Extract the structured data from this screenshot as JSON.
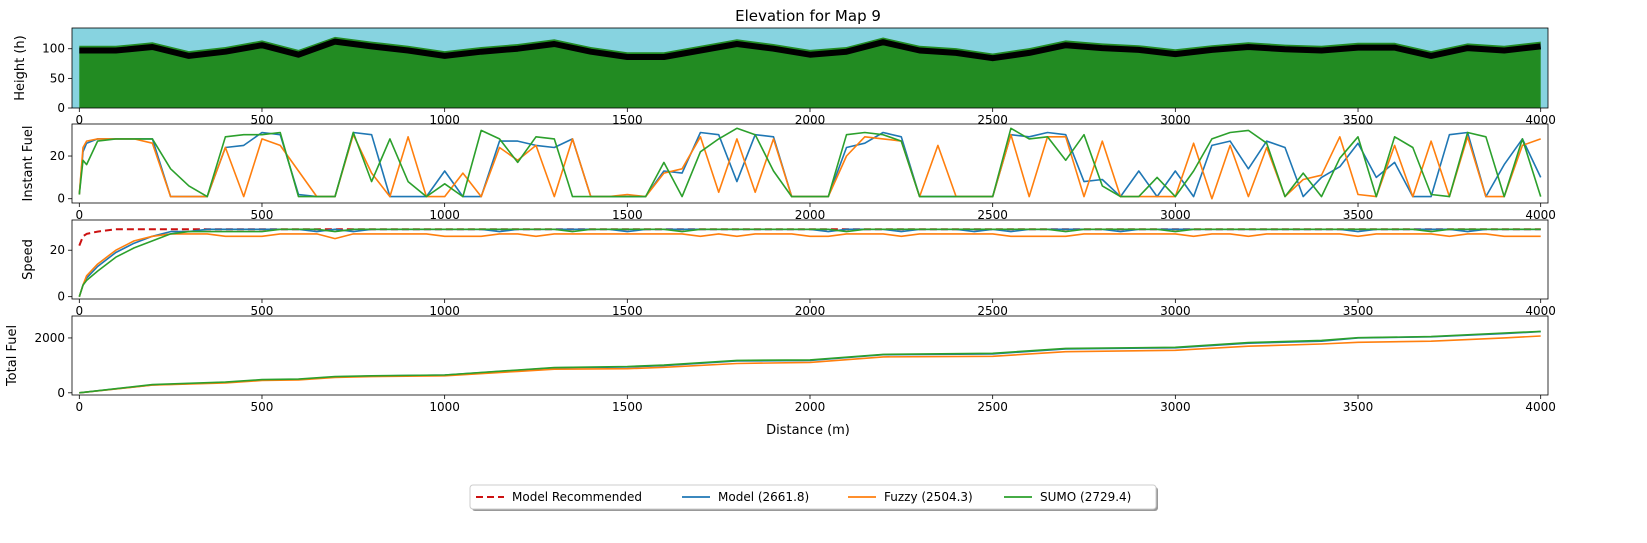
{
  "figure": {
    "title": "Elevation for Map 9",
    "xlabel": "Distance (m)",
    "x_ticks": [
      0,
      500,
      1000,
      1500,
      2000,
      2500,
      3000,
      3500,
      4000
    ]
  },
  "colors": {
    "sky": "#87d3e0",
    "ground": "#228b22",
    "road": "#000000",
    "model_recommended": "#cc1111",
    "model": "#1f77b4",
    "fuzzy": "#ff7f0e",
    "sumo": "#2ca02c"
  },
  "legend": {
    "placement": "bottom-center",
    "entries": [
      {
        "key": "model_recommended",
        "label": "Model Recommended",
        "style": "dashed"
      },
      {
        "key": "model",
        "label": "Model (2661.8)",
        "style": "solid"
      },
      {
        "key": "fuzzy",
        "label": "Fuzzy (2504.3)",
        "style": "solid"
      },
      {
        "key": "sumo",
        "label": "SUMO (2729.4)",
        "style": "solid"
      }
    ]
  },
  "chart_data": [
    {
      "type": "area",
      "ylabel": "Height (h)",
      "xlim": [
        -20,
        4020
      ],
      "ylim": [
        0,
        135
      ],
      "y_ticks": [
        0,
        50,
        100
      ],
      "series": [
        {
          "key": "elevation",
          "x": [
            0,
            100,
            200,
            300,
            400,
            500,
            600,
            700,
            800,
            900,
            1000,
            1100,
            1200,
            1300,
            1400,
            1500,
            1600,
            1700,
            1800,
            1900,
            2000,
            2100,
            2200,
            2300,
            2400,
            2500,
            2600,
            2700,
            2800,
            2900,
            3000,
            3100,
            3200,
            3300,
            3400,
            3500,
            3600,
            3700,
            3800,
            3900,
            4000
          ],
          "values": [
            97,
            97,
            103,
            88,
            95,
            106,
            90,
            112,
            104,
            97,
            88,
            95,
            100,
            108,
            95,
            86,
            86,
            97,
            108,
            100,
            90,
            95,
            111,
            97,
            93,
            84,
            93,
            106,
            101,
            98,
            91,
            98,
            103,
            99,
            97,
            102,
            102,
            88,
            101,
            97,
            104
          ]
        }
      ]
    },
    {
      "type": "line",
      "ylabel": "Instant Fuel",
      "xlim": [
        -20,
        4020
      ],
      "ylim": [
        -2,
        35
      ],
      "y_ticks": [
        0,
        20
      ],
      "x": [
        0,
        10,
        20,
        50,
        100,
        150,
        200,
        250,
        300,
        350,
        400,
        450,
        500,
        550,
        600,
        650,
        700,
        750,
        800,
        850,
        900,
        950,
        1000,
        1050,
        1100,
        1150,
        1200,
        1250,
        1300,
        1350,
        1400,
        1450,
        1500,
        1550,
        1600,
        1650,
        1700,
        1750,
        1800,
        1850,
        1900,
        1950,
        2000,
        2050,
        2100,
        2150,
        2200,
        2250,
        2300,
        2350,
        2400,
        2450,
        2500,
        2550,
        2600,
        2650,
        2700,
        2750,
        2800,
        2850,
        2900,
        2950,
        3000,
        3050,
        3100,
        3150,
        3200,
        3250,
        3300,
        3350,
        3400,
        3450,
        3500,
        3550,
        3600,
        3650,
        3700,
        3750,
        3800,
        3850,
        3900,
        3950,
        4000
      ],
      "series": [
        {
          "key": "model",
          "values": [
            2,
            22,
            26,
            28,
            28,
            28,
            28,
            1,
            1,
            1,
            24,
            25,
            31,
            30,
            2,
            1,
            1,
            31,
            30,
            1,
            1,
            1,
            13,
            1,
            1,
            27,
            27,
            25,
            24,
            28,
            1,
            1,
            1,
            1,
            13,
            12,
            31,
            30,
            8,
            30,
            29,
            1,
            1,
            1,
            24,
            26,
            31,
            29,
            1,
            1,
            1,
            1,
            1,
            30,
            29,
            31,
            30,
            8,
            9,
            1,
            13,
            1,
            13,
            1,
            25,
            27,
            14,
            27,
            24,
            1,
            10,
            15,
            26,
            10,
            17,
            1,
            1,
            30,
            31,
            1,
            16,
            28,
            10
          ]
        },
        {
          "key": "fuzzy",
          "values": [
            2,
            24,
            27,
            28,
            28,
            28,
            26,
            1,
            1,
            1,
            24,
            1,
            28,
            25,
            13,
            1,
            1,
            30,
            12,
            1,
            29,
            1,
            1,
            12,
            1,
            24,
            18,
            25,
            1,
            28,
            1,
            1,
            2,
            1,
            12,
            14,
            29,
            3,
            28,
            3,
            28,
            1,
            1,
            1,
            20,
            29,
            28,
            27,
            1,
            25,
            1,
            1,
            1,
            30,
            1,
            29,
            29,
            1,
            27,
            1,
            1,
            1,
            1,
            26,
            0,
            25,
            1,
            24,
            1,
            9,
            11,
            29,
            2,
            1,
            25,
            1,
            27,
            1,
            29,
            1,
            1,
            25,
            28
          ]
        },
        {
          "key": "sumo",
          "values": [
            2,
            18,
            16,
            27,
            28,
            28,
            28,
            14,
            6,
            1,
            29,
            30,
            30,
            31,
            1,
            1,
            1,
            31,
            8,
            28,
            8,
            1,
            7,
            1,
            32,
            28,
            17,
            29,
            28,
            1,
            1,
            1,
            1,
            1,
            17,
            1,
            22,
            28,
            33,
            30,
            13,
            1,
            1,
            1,
            30,
            31,
            30,
            27,
            1,
            1,
            1,
            1,
            1,
            33,
            28,
            29,
            18,
            30,
            6,
            1,
            1,
            10,
            1,
            13,
            28,
            31,
            32,
            26,
            1,
            12,
            1,
            19,
            29,
            1,
            29,
            24,
            2,
            1,
            31,
            29,
            1,
            28,
            1
          ]
        }
      ]
    },
    {
      "type": "line",
      "ylabel": "Speed",
      "xlim": [
        -20,
        4020
      ],
      "ylim": [
        -1,
        33
      ],
      "y_ticks": [
        0,
        20
      ],
      "x": [
        0,
        10,
        20,
        50,
        100,
        150,
        200,
        250,
        300,
        350,
        400,
        450,
        500,
        550,
        600,
        650,
        700,
        750,
        800,
        850,
        900,
        950,
        1000,
        1050,
        1100,
        1150,
        1200,
        1250,
        1300,
        1350,
        1400,
        1450,
        1500,
        1550,
        1600,
        1650,
        1700,
        1750,
        1800,
        1850,
        1900,
        1950,
        2000,
        2050,
        2100,
        2150,
        2200,
        2250,
        2300,
        2350,
        2400,
        2450,
        2500,
        2550,
        2600,
        2650,
        2700,
        2750,
        2800,
        2850,
        2900,
        2950,
        3000,
        3050,
        3100,
        3150,
        3200,
        3250,
        3300,
        3350,
        3400,
        3450,
        3500,
        3550,
        3600,
        3650,
        3700,
        3750,
        3800,
        3850,
        3900,
        3950,
        4000
      ],
      "series": [
        {
          "key": "model_recommended",
          "values": [
            22,
            26,
            27,
            28,
            29,
            29,
            29,
            29,
            29,
            29,
            29,
            29,
            29,
            29,
            29,
            29,
            29,
            29,
            29,
            29,
            29,
            29,
            29,
            29,
            29,
            29,
            29,
            29,
            29,
            29,
            29,
            29,
            29,
            29,
            29,
            29,
            29,
            29,
            29,
            29,
            29,
            29,
            29,
            29,
            29,
            29,
            29,
            29,
            29,
            29,
            29,
            29,
            29,
            29,
            29,
            29,
            29,
            29,
            29,
            29,
            29,
            29,
            29,
            29,
            29,
            29,
            29,
            29,
            29,
            29,
            29,
            29,
            29,
            29,
            29,
            29,
            29,
            29,
            29,
            29,
            29,
            29,
            29
          ],
          "style": "dashed"
        },
        {
          "key": "model",
          "values": [
            0,
            5,
            8,
            13,
            19,
            23,
            26,
            28,
            28,
            29,
            29,
            29,
            29,
            29,
            29,
            28,
            29,
            28,
            29,
            29,
            29,
            29,
            29,
            29,
            29,
            28,
            29,
            29,
            29,
            29,
            29,
            29,
            28,
            29,
            29,
            29,
            29,
            29,
            29,
            29,
            29,
            29,
            29,
            28,
            29,
            29,
            29,
            28,
            29,
            29,
            29,
            28,
            29,
            28,
            29,
            29,
            29,
            29,
            29,
            28,
            29,
            29,
            29,
            29,
            29,
            29,
            29,
            29,
            29,
            29,
            29,
            29,
            28,
            29,
            29,
            29,
            29,
            29,
            28,
            29,
            29,
            29,
            29
          ]
        },
        {
          "key": "fuzzy",
          "values": [
            0,
            5,
            9,
            14,
            20,
            24,
            26,
            27,
            27,
            27,
            26,
            26,
            26,
            27,
            27,
            27,
            25,
            27,
            27,
            27,
            27,
            27,
            26,
            26,
            26,
            27,
            27,
            26,
            27,
            27,
            27,
            27,
            27,
            27,
            27,
            27,
            26,
            27,
            26,
            27,
            27,
            27,
            26,
            26,
            27,
            27,
            27,
            26,
            27,
            27,
            27,
            27,
            27,
            26,
            26,
            26,
            26,
            27,
            27,
            27,
            27,
            27,
            27,
            26,
            27,
            27,
            26,
            27,
            27,
            27,
            27,
            27,
            26,
            27,
            27,
            27,
            27,
            26,
            27,
            27,
            26,
            26,
            26
          ]
        },
        {
          "key": "sumo",
          "values": [
            0,
            5,
            7,
            11,
            17,
            21,
            24,
            27,
            28,
            28,
            28,
            28,
            28,
            29,
            29,
            29,
            28,
            29,
            29,
            29,
            29,
            29,
            29,
            29,
            29,
            29,
            29,
            29,
            29,
            28,
            29,
            29,
            29,
            29,
            29,
            28,
            29,
            29,
            29,
            29,
            29,
            29,
            29,
            29,
            28,
            29,
            29,
            29,
            29,
            29,
            29,
            29,
            29,
            29,
            29,
            29,
            28,
            29,
            29,
            29,
            29,
            29,
            28,
            29,
            29,
            29,
            29,
            29,
            29,
            29,
            29,
            29,
            29,
            29,
            29,
            29,
            28,
            29,
            29,
            29,
            29,
            29,
            29
          ]
        }
      ]
    },
    {
      "type": "line",
      "ylabel": "Total Fuel",
      "xlim": [
        -20,
        4020
      ],
      "ylim": [
        -80,
        2800
      ],
      "y_ticks": [
        0,
        2000
      ],
      "x": [
        0,
        200,
        400,
        500,
        600,
        700,
        800,
        1000,
        1200,
        1300,
        1500,
        1600,
        1800,
        2000,
        2200,
        2500,
        2700,
        3000,
        3200,
        3400,
        3500,
        3700,
        3900,
        4000
      ],
      "series": [
        {
          "key": "model",
          "values": [
            0,
            290,
            380,
            470,
            490,
            580,
            610,
            650,
            820,
            910,
            940,
            990,
            1160,
            1180,
            1390,
            1420,
            1600,
            1640,
            1810,
            1880,
            2000,
            2040,
            2160,
            2230
          ]
        },
        {
          "key": "fuzzy",
          "values": [
            0,
            280,
            360,
            450,
            470,
            560,
            590,
            620,
            780,
            860,
            880,
            930,
            1070,
            1110,
            1310,
            1330,
            1500,
            1550,
            1700,
            1780,
            1840,
            1880,
            2000,
            2070
          ]
        },
        {
          "key": "sumo",
          "values": [
            0,
            300,
            390,
            480,
            500,
            590,
            620,
            650,
            830,
            920,
            960,
            1010,
            1180,
            1200,
            1400,
            1440,
            1620,
            1660,
            1830,
            1910,
            2010,
            2050,
            2180,
            2240
          ]
        }
      ]
    }
  ]
}
